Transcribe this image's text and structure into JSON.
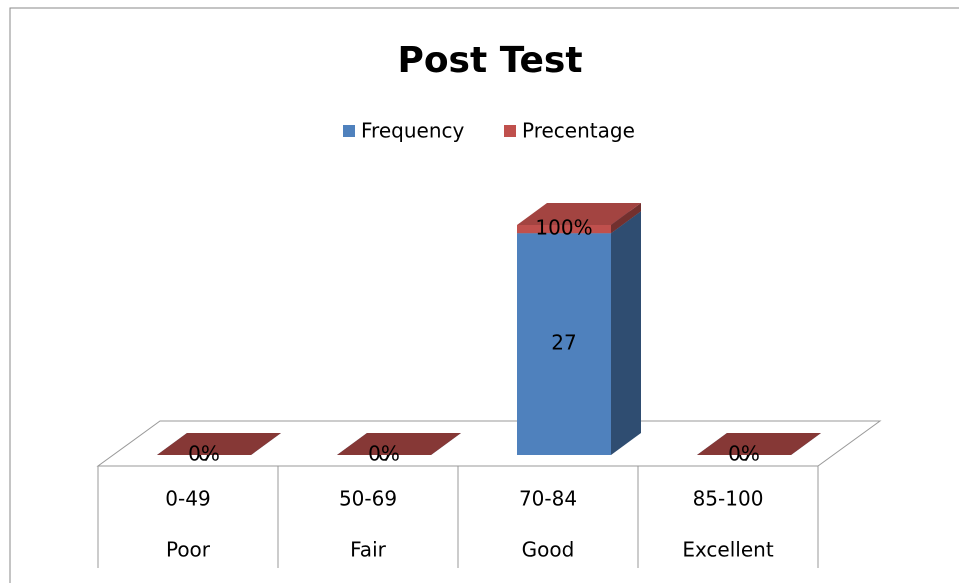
{
  "chart_data": {
    "type": "bar3d_stacked",
    "title": "Post Test",
    "categories": [
      "0-49",
      "50-69",
      "70-84",
      "85-100"
    ],
    "category_groups": [
      "Poor",
      "Fair",
      "Good",
      "Excellent"
    ],
    "series": [
      {
        "name": "Frequency",
        "color": "#4f81bd",
        "values": [
          0,
          0,
          27,
          0
        ]
      },
      {
        "name": "Precentage",
        "color": "#c0504d",
        "values": [
          0,
          0,
          1,
          0
        ],
        "value_labels": [
          "0%",
          "0%",
          "100%",
          "0%"
        ]
      }
    ],
    "legend": "top"
  }
}
